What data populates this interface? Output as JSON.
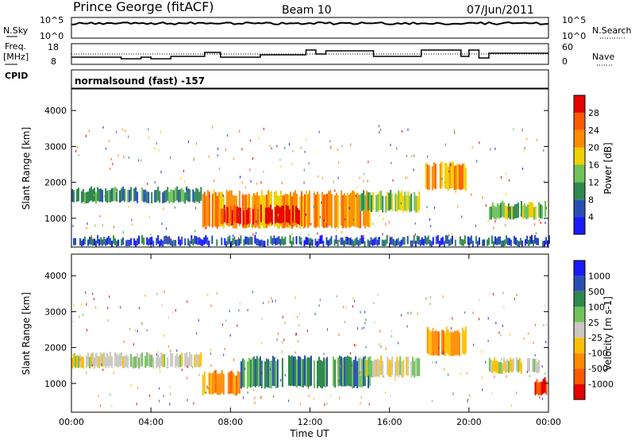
{
  "header": {
    "station": "Prince George (fitACF)",
    "beam": "Beam 10",
    "date": "07/Jun/2011"
  },
  "noise_panel": {
    "left_label": "N.Sky",
    "right_label": "N.Search",
    "left_ticks": [
      "10^5",
      "10^0"
    ],
    "right_ticks": [
      "10^5",
      "10^0"
    ]
  },
  "freq_panel": {
    "left_label_1": "Freq.",
    "left_label_2": "[MHz]",
    "right_label": "Nave",
    "left_ticks": [
      "18",
      "8"
    ],
    "right_ticks": [
      "60",
      "0"
    ],
    "cpid_label": "CPID",
    "cpid_text": "normalsound (fast) -157"
  },
  "x_axis": {
    "label": "Time UT",
    "ticks": [
      "00:00",
      "04:00",
      "08:00",
      "12:00",
      "16:00",
      "20:00",
      "00:00"
    ],
    "range_hours": [
      0,
      24
    ]
  },
  "colors": {
    "power_scale": [
      "#1a1aff",
      "#2a4fb4",
      "#2f8a4f",
      "#70c25a",
      "#f0d000",
      "#ff8c00",
      "#ff5a00",
      "#e60000"
    ],
    "velocity_scale": [
      "#e60000",
      "#ff5a00",
      "#ff8c00",
      "#ffc000",
      "#c8c8c0",
      "#70c25a",
      "#2f8a4f",
      "#2a4fb4",
      "#1a1aff"
    ]
  },
  "chart_data": [
    {
      "type": "heatmap",
      "name": "power",
      "ylabel": "Slant Range [km]",
      "xlabel": "",
      "yticks": [
        1000,
        2000,
        3000,
        4000
      ],
      "ylim": [
        200,
        4600
      ],
      "xlim": [
        0,
        24
      ],
      "colorbar": {
        "label": "Power [dB]",
        "ticks": [
          "4",
          "8",
          "12",
          "16",
          "20",
          "24",
          "28"
        ]
      },
      "regions": [
        {
          "t0": 0.0,
          "t1": 6.5,
          "r0": 1450,
          "r1": 1800,
          "level": 2
        },
        {
          "t0": 0.0,
          "t1": 24.0,
          "r0": 250,
          "r1": 450,
          "level": 1
        },
        {
          "t0": 6.5,
          "t1": 15.0,
          "r0": 750,
          "r1": 1700,
          "level": 5
        },
        {
          "t0": 7.5,
          "t1": 11.5,
          "r0": 850,
          "r1": 1300,
          "level": 7
        },
        {
          "t0": 14.5,
          "t1": 17.5,
          "r0": 1200,
          "r1": 1700,
          "level": 3
        },
        {
          "t0": 17.8,
          "t1": 19.8,
          "r0": 1800,
          "r1": 2500,
          "level": 5
        },
        {
          "t0": 21.0,
          "t1": 23.8,
          "r0": 1000,
          "r1": 1400,
          "level": 3
        }
      ]
    },
    {
      "type": "heatmap",
      "name": "velocity",
      "ylabel": "Slant Range [km]",
      "xlabel": "Time UT",
      "yticks": [
        1000,
        2000,
        3000,
        4000
      ],
      "ylim": [
        200,
        4600
      ],
      "xlim": [
        0,
        24
      ],
      "colorbar": {
        "label": "Velocity [m s-1]",
        "ticks": [
          "-1000",
          "-500",
          "-100",
          "-25",
          "25",
          "100",
          "500",
          "1000"
        ]
      },
      "regions": [
        {
          "t0": 0.0,
          "t1": 6.5,
          "r0": 1450,
          "r1": 1800,
          "level": 4
        },
        {
          "t0": 6.5,
          "t1": 8.5,
          "r0": 700,
          "r1": 1300,
          "level": 2
        },
        {
          "t0": 8.5,
          "t1": 15.0,
          "r0": 900,
          "r1": 1700,
          "level": 6
        },
        {
          "t0": 14.5,
          "t1": 17.5,
          "r0": 1200,
          "r1": 1700,
          "level": 4
        },
        {
          "t0": 17.8,
          "t1": 19.8,
          "r0": 1800,
          "r1": 2500,
          "level": 2
        },
        {
          "t0": 21.0,
          "t1": 23.5,
          "r0": 1300,
          "r1": 1650,
          "level": 4
        },
        {
          "t0": 23.3,
          "t1": 24.0,
          "r0": 700,
          "r1": 1100,
          "level": 1
        }
      ]
    }
  ]
}
